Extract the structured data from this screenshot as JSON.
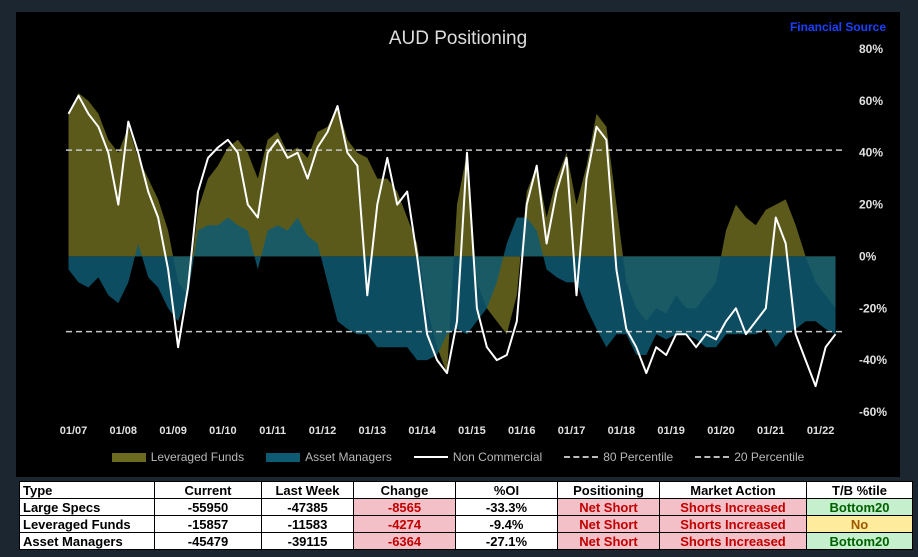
{
  "chart_data": {
    "type": "area",
    "title": "AUD Positioning",
    "source": "Financial Source",
    "ylim": [
      -60,
      80
    ],
    "y_ticks": [
      "80%",
      "60%",
      "40%",
      "20%",
      "0%",
      "-20%",
      "-40%",
      "-60%"
    ],
    "y_tick_values": [
      80,
      60,
      40,
      20,
      0,
      -20,
      -40,
      -60
    ],
    "x_ticks": [
      "01/07",
      "01/08",
      "01/09",
      "01/10",
      "01/11",
      "01/12",
      "01/13",
      "01/14",
      "01/15",
      "01/16",
      "01/17",
      "01/18",
      "01/19",
      "01/20",
      "01/21",
      "01/22"
    ],
    "x": [
      2006.9,
      2007.1,
      2007.3,
      2007.5,
      2007.7,
      2007.9,
      2008.1,
      2008.3,
      2008.5,
      2008.7,
      2008.9,
      2009.1,
      2009.3,
      2009.5,
      2009.7,
      2009.9,
      2010.1,
      2010.3,
      2010.5,
      2010.7,
      2010.9,
      2011.1,
      2011.3,
      2011.5,
      2011.7,
      2011.9,
      2012.1,
      2012.3,
      2012.5,
      2012.7,
      2012.9,
      2013.1,
      2013.3,
      2013.5,
      2013.7,
      2013.9,
      2014.1,
      2014.3,
      2014.5,
      2014.7,
      2014.9,
      2015.1,
      2015.3,
      2015.5,
      2015.7,
      2015.9,
      2016.1,
      2016.3,
      2016.5,
      2016.7,
      2016.9,
      2017.1,
      2017.3,
      2017.5,
      2017.7,
      2017.9,
      2018.1,
      2018.3,
      2018.5,
      2018.7,
      2018.9,
      2019.1,
      2019.3,
      2019.5,
      2019.7,
      2019.9,
      2020.1,
      2020.3,
      2020.5,
      2020.7,
      2020.9,
      2021.1,
      2021.3,
      2021.5,
      2021.7,
      2021.9,
      2022.1,
      2022.3
    ],
    "series": [
      {
        "name": "Leveraged Funds",
        "color": "#6b6a1e",
        "values": [
          55,
          63,
          60,
          55,
          45,
          40,
          50,
          38,
          30,
          22,
          10,
          -10,
          -15,
          18,
          30,
          35,
          42,
          45,
          40,
          30,
          45,
          48,
          40,
          42,
          38,
          48,
          50,
          58,
          45,
          40,
          38,
          30,
          30,
          25,
          15,
          5,
          -20,
          -35,
          -45,
          20,
          40,
          -10,
          -20,
          -25,
          -30,
          -15,
          25,
          35,
          15,
          30,
          40,
          20,
          35,
          55,
          50,
          20,
          -10,
          -20,
          -25,
          -20,
          -22,
          -15,
          -20,
          -20,
          -15,
          -10,
          10,
          20,
          15,
          12,
          18,
          20,
          22,
          12,
          0,
          -10,
          -15,
          -20
        ]
      },
      {
        "name": "Asset Managers",
        "color": "#0e5a72",
        "values": [
          -5,
          -10,
          -12,
          -8,
          -15,
          -18,
          -10,
          5,
          -8,
          -12,
          -20,
          -25,
          -15,
          10,
          12,
          12,
          15,
          12,
          10,
          -5,
          10,
          12,
          10,
          15,
          8,
          5,
          -10,
          -25,
          -28,
          -30,
          -30,
          -35,
          -35,
          -35,
          -35,
          -40,
          -40,
          -38,
          -30,
          -28,
          -30,
          -25,
          -20,
          -10,
          5,
          15,
          15,
          10,
          -5,
          -8,
          -10,
          -10,
          -20,
          -28,
          -35,
          -30,
          -30,
          -38,
          -38,
          -30,
          -32,
          -30,
          -30,
          -32,
          -35,
          -35,
          -30,
          -30,
          -30,
          -30,
          -28,
          -35,
          -30,
          -28,
          -25,
          -25,
          -28,
          -30
        ]
      },
      {
        "name": "Non Commercial",
        "color": "#ffffff",
        "values": [
          55,
          62,
          55,
          50,
          40,
          20,
          52,
          40,
          25,
          15,
          -5,
          -35,
          -12,
          25,
          38,
          42,
          45,
          40,
          20,
          15,
          40,
          45,
          38,
          40,
          30,
          42,
          48,
          58,
          40,
          35,
          -15,
          20,
          38,
          20,
          25,
          0,
          -30,
          -40,
          -45,
          -25,
          40,
          -20,
          -35,
          -40,
          -38,
          -25,
          20,
          35,
          5,
          25,
          38,
          -15,
          30,
          50,
          45,
          -5,
          -28,
          -35,
          -45,
          -35,
          -38,
          -30,
          -30,
          -35,
          -30,
          -32,
          -25,
          -20,
          -30,
          -25,
          -20,
          15,
          5,
          -30,
          -40,
          -50,
          -35,
          -30
        ]
      },
      {
        "name": "80 Percentile",
        "value": 41
      },
      {
        "name": "20 Percentile",
        "value": -29
      }
    ],
    "legend_position": "bottom",
    "legend": [
      "Leveraged Funds",
      "Asset Managers",
      "Non Commercial",
      "80 Percentile",
      "20 Percentile"
    ]
  },
  "table": {
    "headers": [
      "Type",
      "Current",
      "Last Week",
      "Change",
      "%OI",
      "Positioning",
      "Market Action",
      "T/B %tile"
    ],
    "rows": [
      {
        "type": "Large Specs",
        "current": "-55950",
        "last_week": "-47385",
        "change": "-8565",
        "oi": "-33.3%",
        "positioning": "Net Short",
        "action": "Shorts Increased",
        "tb": "Bottom20",
        "tb_class": "green"
      },
      {
        "type": "Leveraged Funds",
        "current": "-15857",
        "last_week": "-11583",
        "change": "-4274",
        "oi": "-9.4%",
        "positioning": "Net Short",
        "action": "Shorts Increased",
        "tb": "No",
        "tb_class": "yellow"
      },
      {
        "type": "Asset Managers",
        "current": "-45479",
        "last_week": "-39115",
        "change": "-6364",
        "oi": "-27.1%",
        "positioning": "Net Short",
        "action": "Shorts Increased",
        "tb": "Bottom20",
        "tb_class": "green"
      }
    ]
  }
}
